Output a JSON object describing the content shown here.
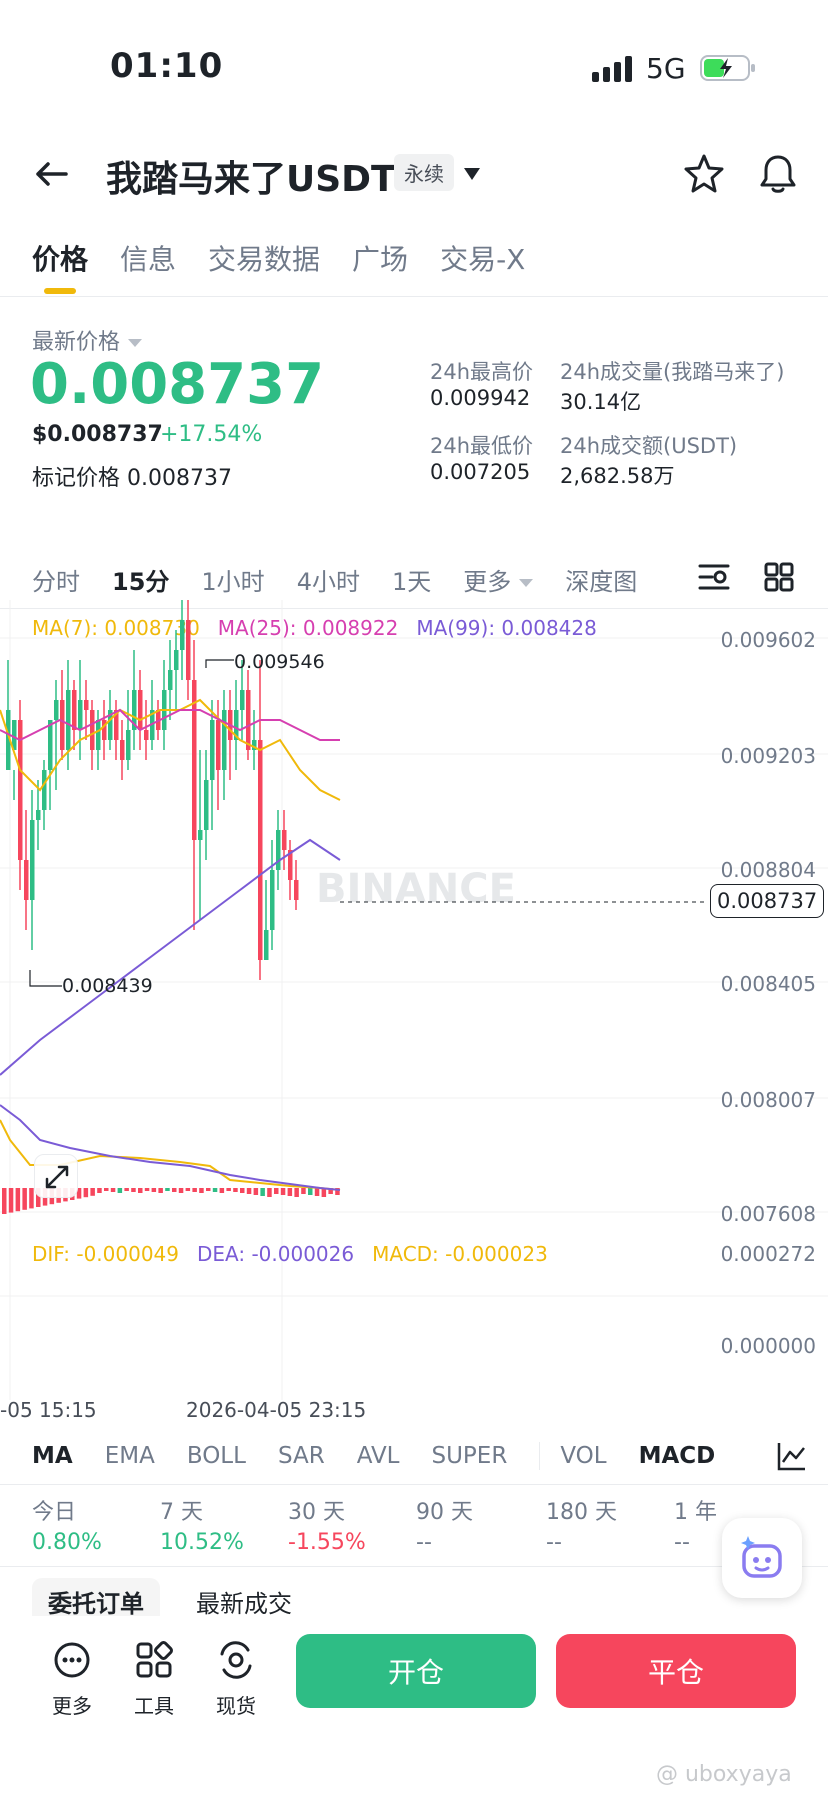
{
  "status_bar": {
    "time": "01:10",
    "network": "5G"
  },
  "header": {
    "title": "我踏马来了USDT",
    "badge": "永续"
  },
  "tabs": [
    "价格",
    "信息",
    "交易数据",
    "广场",
    "交易-X"
  ],
  "price": {
    "label": "最新价格",
    "last": "0.008737",
    "usd": "$0.008737",
    "change": "+17.54%",
    "mark_label": "标记价格",
    "mark_value": "0.008737"
  },
  "stats": {
    "high_label": "24h最高价",
    "high_value": "0.009942",
    "low_label": "24h最低价",
    "low_value": "0.007205",
    "vol_label": "24h成交量(我踏马来了)",
    "vol_value": "30.14亿",
    "amt_label": "24h成交额(USDT)",
    "amt_value": "2,682.58万"
  },
  "intervals": [
    "分时",
    "15分",
    "1小时",
    "4小时",
    "1天",
    "更多",
    "深度图"
  ],
  "ma_legend": {
    "ma7": "MA(7): 0.008730",
    "ma25": "MA(25): 0.008922",
    "ma99": "MA(99): 0.008428"
  },
  "y_axis": [
    "0.009602",
    "0.009203",
    "0.008804",
    "0.008405",
    "0.008007",
    "0.007608"
  ],
  "current_price_tag": "0.008737",
  "chart_annotations": {
    "high": "0.009546",
    "low": "0.008439"
  },
  "watermark_logo": "BINANCE",
  "macd_legend": {
    "dif": "DIF: -0.000049",
    "dea": "DEA: -0.000026",
    "macd": "MACD: -0.000023"
  },
  "macd_axis": [
    "0.000272",
    "0.000000"
  ],
  "x_axis": [
    "-05 15:15",
    "2026-04-05 23:15"
  ],
  "indicators": [
    "MA",
    "EMA",
    "BOLL",
    "SAR",
    "AVL",
    "SUPER",
    "VOL",
    "MACD"
  ],
  "performance": {
    "labels": [
      "今日",
      "7 天",
      "30 天",
      "90 天",
      "180 天",
      "1 年"
    ],
    "values": [
      "0.80%",
      "10.52%",
      "-1.55%",
      "--",
      "--",
      "--"
    ]
  },
  "order_tabs": [
    "委托订单",
    "最新成交"
  ],
  "bottom": {
    "more": "更多",
    "tools": "工具",
    "spot": "现货",
    "open": "开仓",
    "close": "平仓"
  },
  "footer_watermark": "@ uboxyaya",
  "colors": {
    "up": "#2ebd85",
    "down": "#f6465d",
    "accent": "#f0b90b",
    "ma7": "#f0b90b",
    "ma25": "#d63fb0",
    "ma99": "#7a5bd6"
  }
}
